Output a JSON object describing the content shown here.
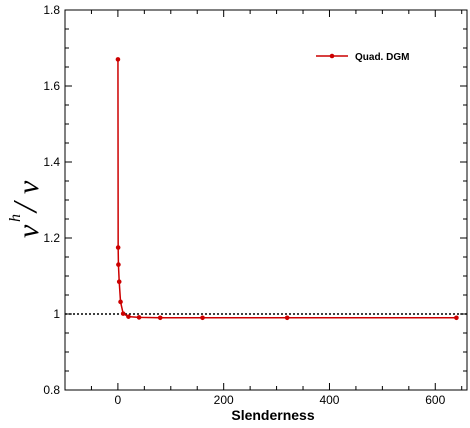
{
  "chart_data": {
    "type": "line",
    "title": "",
    "xlabel": "Slenderness",
    "ylabel": {
      "main": "v",
      "superscript": "h",
      "slash": "/",
      "denominator": "v"
    },
    "xlim": [
      -100,
      660
    ],
    "ylim": [
      0.8,
      1.8
    ],
    "x_ticks": [
      0,
      200,
      400,
      600
    ],
    "x_tick_labels": [
      "0",
      "200",
      "400",
      "600"
    ],
    "y_ticks": [
      0.8,
      1,
      1.2,
      1.4,
      1.6,
      1.8
    ],
    "y_tick_labels": [
      "0.8",
      "1",
      "1.2",
      "1.4",
      "1.6",
      "1.8"
    ],
    "reference_line": {
      "y": 1,
      "style": "dotted",
      "color": "#000000"
    },
    "grid": false,
    "legend": {
      "position": "top-right"
    },
    "series": [
      {
        "name": "Quad. DGM",
        "color": "#cc0000",
        "marker": "circle",
        "x": [
          0.1,
          0.5,
          1,
          2.5,
          5,
          10,
          20,
          40,
          80,
          160,
          320,
          640
        ],
        "y": [
          1.67,
          1.175,
          1.13,
          1.085,
          1.032,
          1.001,
          0.993,
          0.991,
          0.99,
          0.99,
          0.99,
          0.99
        ]
      }
    ]
  }
}
